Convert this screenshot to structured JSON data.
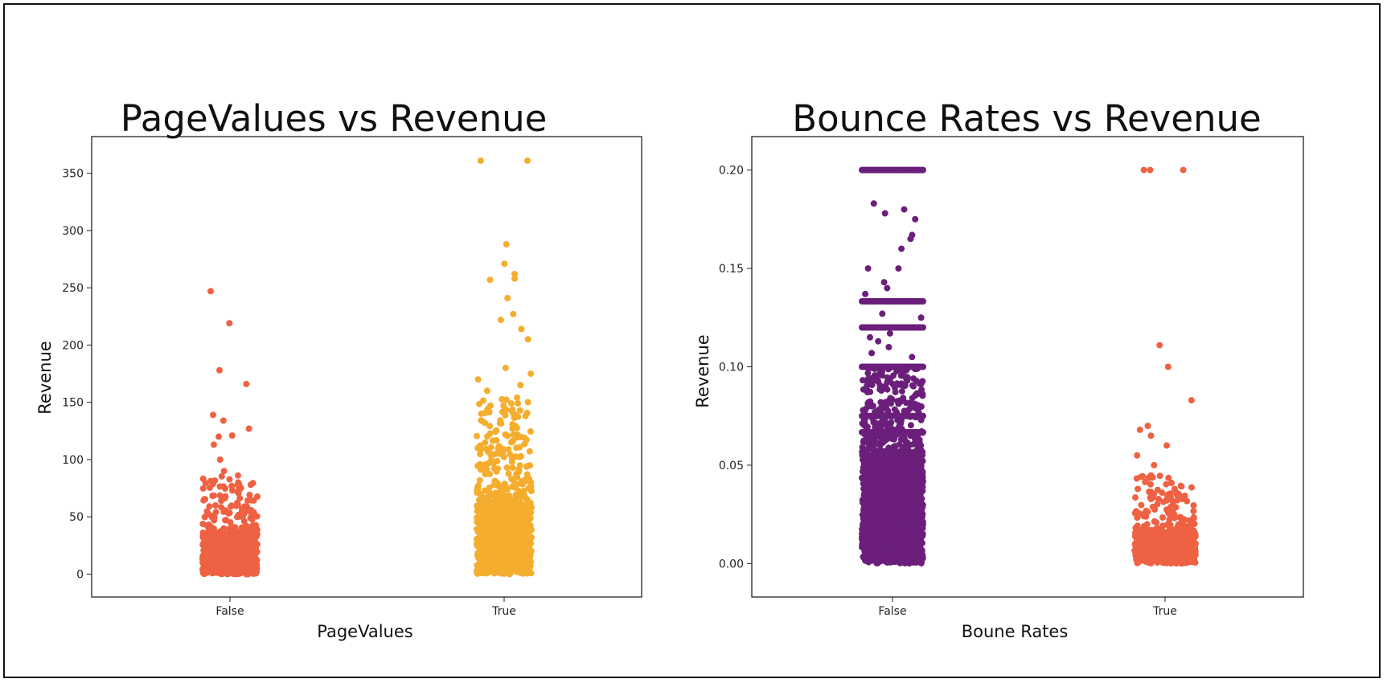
{
  "chart_data": [
    {
      "type": "scatter",
      "subtype": "strip",
      "title": "PageValues vs Revenue",
      "xlabel": "PageValues",
      "ylabel": "Revenue",
      "categories": [
        "False",
        "True"
      ],
      "ylim": [
        -20,
        382
      ],
      "yticks": [
        0,
        50,
        100,
        150,
        200,
        250,
        300,
        350
      ],
      "grid": false,
      "colors": [
        "#ee6142",
        "#f5ad2e"
      ],
      "series": [
        {
          "category": "False",
          "dense_band": {
            "min": 0,
            "max": 35,
            "count": 700
          },
          "sparse_band": {
            "min": 35,
            "max": 87,
            "count": 140
          },
          "outliers": [
            247,
            219,
            178,
            166,
            139,
            134,
            127,
            121,
            120,
            113,
            100,
            90
          ]
        },
        {
          "category": "True",
          "dense_band": {
            "min": 0,
            "max": 62,
            "count": 900
          },
          "sparse_band": {
            "min": 62,
            "max": 155,
            "count": 220
          },
          "outliers": [
            361,
            361,
            288,
            271,
            262,
            258,
            257,
            241,
            227,
            222,
            214,
            205,
            180,
            175,
            170,
            165,
            160
          ]
        }
      ]
    },
    {
      "type": "scatter",
      "subtype": "strip",
      "title": "Bounce Rates vs Revenue",
      "xlabel": "Boune Rates",
      "ylabel": "Revenue",
      "categories": [
        "False",
        "True"
      ],
      "ylim": [
        -0.017,
        0.217
      ],
      "yticks": [
        0.0,
        0.05,
        0.1,
        0.15,
        0.2
      ],
      "ytick_labels": [
        "0.00",
        "0.05",
        "0.10",
        "0.15",
        "0.20"
      ],
      "grid": false,
      "colors": [
        "#6b1f7b",
        "#ee6142"
      ],
      "series": [
        {
          "category": "False",
          "dense_band": {
            "min": 0,
            "max": 0.055,
            "count": 1100
          },
          "sparse_band": {
            "min": 0.055,
            "max": 0.1,
            "count": 320
          },
          "lines": [
            0.2,
            0.1333,
            0.12,
            0.1,
            0.075,
            0.0667
          ],
          "outliers": [
            0.183,
            0.18,
            0.178,
            0.175,
            0.167,
            0.165,
            0.16,
            0.15,
            0.15,
            0.143,
            0.14,
            0.137,
            0.127,
            0.125,
            0.117,
            0.115,
            0.113,
            0.11,
            0.107,
            0.105
          ]
        },
        {
          "category": "True",
          "dense_band": {
            "min": 0,
            "max": 0.017,
            "count": 450
          },
          "sparse_band": {
            "min": 0.017,
            "max": 0.045,
            "count": 110
          },
          "lines": [],
          "outliers": [
            0.2,
            0.2,
            0.2,
            0.111,
            0.1,
            0.083,
            0.07,
            0.068,
            0.065,
            0.06,
            0.055,
            0.05
          ]
        }
      ]
    }
  ]
}
